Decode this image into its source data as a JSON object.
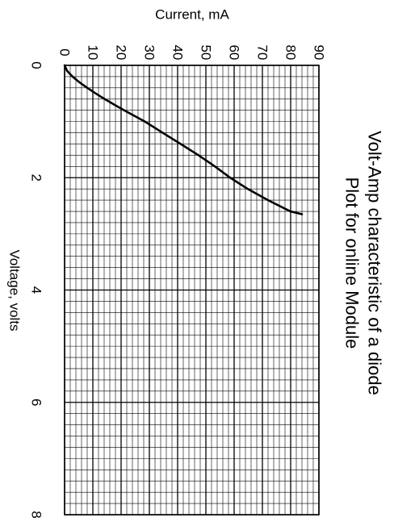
{
  "chart_data": {
    "type": "line",
    "title": "Volt-Amp characteristic of a diode",
    "subtitle": "Plot for online Module",
    "xlabel": "Voltage, volts",
    "ylabel": "Current, mA",
    "xlim": [
      0,
      8
    ],
    "ylim": [
      0,
      90
    ],
    "x_ticks": [
      0,
      2,
      4,
      6,
      8
    ],
    "y_ticks": [
      0,
      10,
      20,
      30,
      40,
      50,
      60,
      70,
      80,
      90
    ],
    "grid": true,
    "legend": "none",
    "series": [
      {
        "x": [
          0.0,
          0.1,
          0.2,
          0.3,
          0.4,
          0.5,
          0.6,
          0.7,
          0.8,
          0.9,
          1.0,
          1.2,
          1.4,
          1.6,
          1.8,
          2.0,
          2.2,
          2.4,
          2.6,
          2.65
        ],
        "values": [
          0.0,
          0.9,
          2.8,
          5.2,
          8.0,
          11.0,
          14.2,
          17.6,
          21.1,
          24.7,
          28.4,
          34.7,
          41.1,
          47.4,
          53.2,
          58.6,
          64.8,
          72.0,
          79.9,
          84.0
        ]
      }
    ]
  }
}
